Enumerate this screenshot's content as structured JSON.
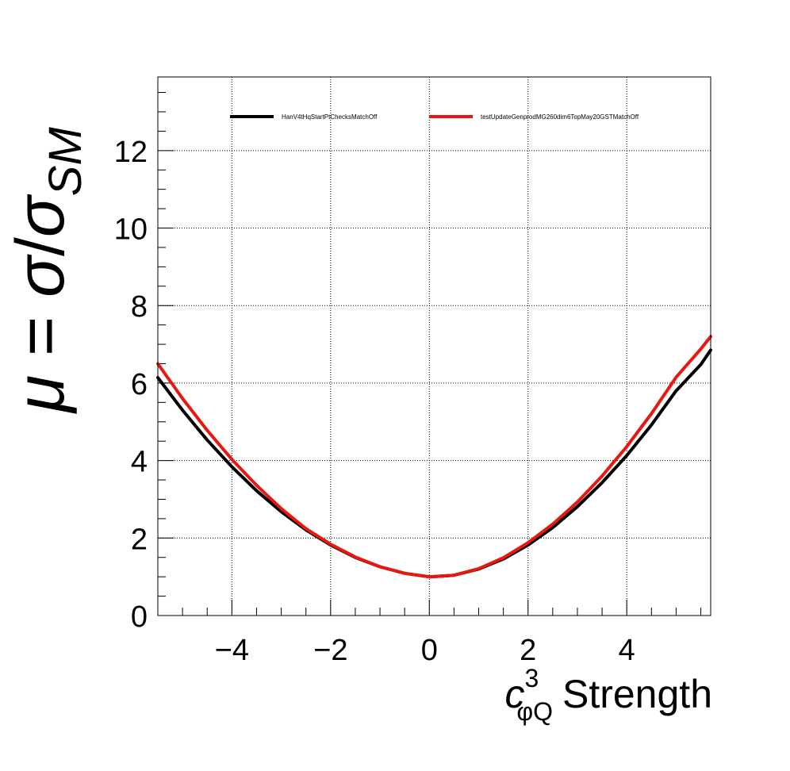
{
  "chart_data": {
    "type": "line",
    "xlabel": {
      "symbol": "c",
      "superscript": "3",
      "subscript": "φQ",
      "text": "Strength"
    },
    "ylabel": {
      "mu": "μ",
      "equals": " = ",
      "sigma": "σ",
      "slash": "/",
      "sigma2": "σ",
      "subscript": "SM"
    },
    "xlim": [
      -5.5,
      5.7
    ],
    "ylim": [
      0,
      13.9
    ],
    "x_ticks": [
      -4,
      -2,
      0,
      2,
      4
    ],
    "x_tick_labels": [
      "−4",
      "−2",
      "0",
      "2",
      "4"
    ],
    "y_ticks": [
      0,
      2,
      4,
      6,
      8,
      10,
      12
    ],
    "y_tick_labels": [
      "0",
      "2",
      "4",
      "6",
      "8",
      "10",
      "12"
    ],
    "grid": true,
    "legend_position": "top",
    "series": [
      {
        "name": "HanV4tHqStartPtChecksMatchOff",
        "color": "#000000",
        "x": [
          -5.5,
          -5,
          -4.5,
          -4,
          -3.5,
          -3,
          -2.5,
          -2,
          -1.5,
          -1,
          -0.5,
          0,
          0.5,
          1,
          1.5,
          2,
          2.5,
          3,
          3.5,
          4,
          4.5,
          5,
          5.5,
          5.7
        ],
        "y": [
          6.14,
          5.3,
          4.53,
          3.84,
          3.22,
          2.68,
          2.21,
          1.82,
          1.5,
          1.26,
          1.09,
          1.0,
          1.04,
          1.2,
          1.46,
          1.82,
          2.27,
          2.81,
          3.43,
          4.13,
          4.92,
          5.8,
          6.48,
          6.85
        ]
      },
      {
        "name": "testUpdateGenprodMG260dim6TopMay20GSTMatchOff",
        "color": "#e8170f",
        "x": [
          -5.5,
          -5,
          -4.5,
          -4,
          -3.5,
          -3,
          -2.5,
          -2,
          -1.5,
          -1,
          -0.5,
          0,
          0.5,
          1,
          1.5,
          2,
          2.5,
          3,
          3.5,
          4,
          4.5,
          5,
          5.5,
          5.7
        ],
        "y": [
          6.5,
          5.6,
          4.78,
          4.03,
          3.36,
          2.76,
          2.24,
          1.84,
          1.51,
          1.26,
          1.09,
          1.0,
          1.04,
          1.21,
          1.49,
          1.88,
          2.36,
          2.93,
          3.6,
          4.36,
          5.21,
          6.15,
          6.88,
          7.2
        ]
      }
    ]
  }
}
